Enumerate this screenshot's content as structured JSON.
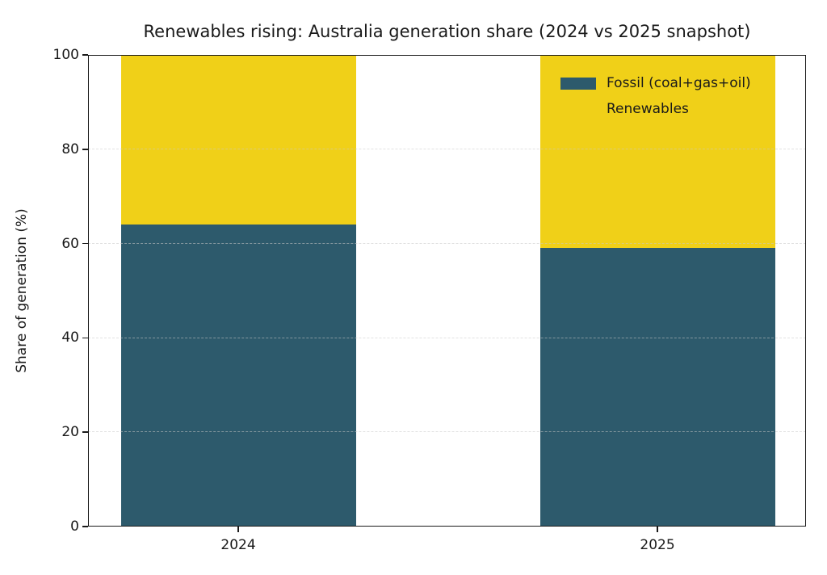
{
  "figure": {
    "background": "#ffffff"
  },
  "chart_data": {
    "type": "bar",
    "stacked": true,
    "title": "Renewables rising: Australia generation share (2024 vs 2025 snapshot)",
    "ylabel": "Share of generation (%)",
    "xlabel": "",
    "categories": [
      "2024",
      "2025"
    ],
    "series": [
      {
        "name": "Fossil (coal+gas+oil)",
        "color": "#2D5A6C",
        "values": [
          64,
          59
        ]
      },
      {
        "name": "Renewables",
        "color": "#F0D018",
        "values": [
          36,
          41
        ]
      }
    ],
    "ylim": [
      0,
      100
    ],
    "yticks": [
      0,
      20,
      40,
      60,
      80,
      100
    ],
    "grid": "horizontal-dashed-over-bars",
    "legend": {
      "position": "upper-right",
      "frame": false
    }
  }
}
